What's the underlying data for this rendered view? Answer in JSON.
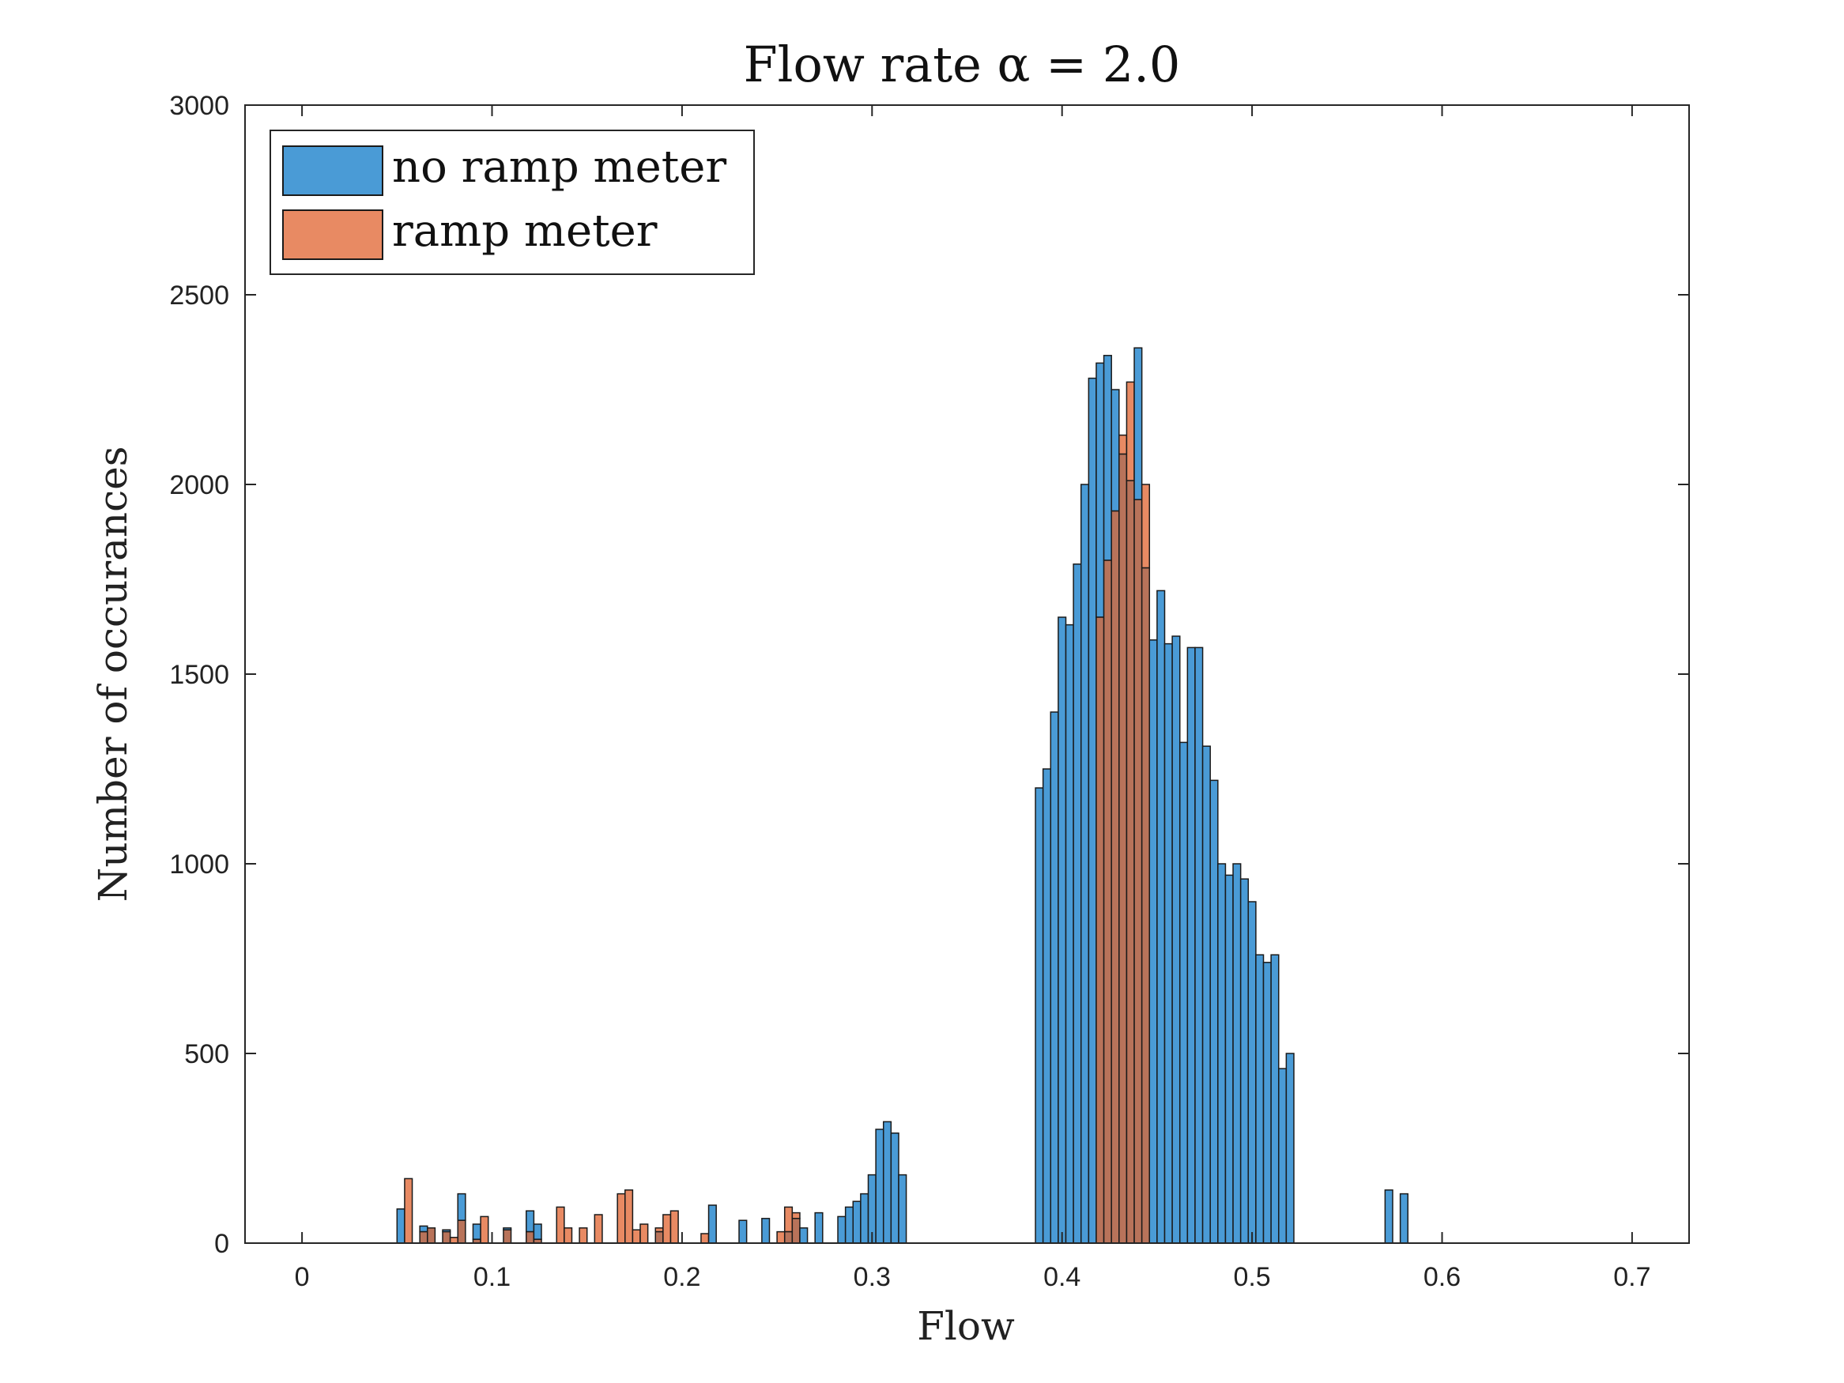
{
  "chart_data": {
    "type": "bar",
    "title": "Flow rate α = 2.0",
    "xlabel": "Flow",
    "ylabel": "Number of occurances",
    "xlim": [
      -0.03,
      0.73
    ],
    "ylim": [
      0,
      3000
    ],
    "xticks": [
      "0",
      "0.1",
      "0.2",
      "0.3",
      "0.4",
      "0.5",
      "0.6",
      "0.7"
    ],
    "yticks": [
      "0",
      "500",
      "1000",
      "1500",
      "2000",
      "2500",
      "3000"
    ],
    "grid": false,
    "legend_position": "top-left",
    "bin_width": 0.004,
    "bin_start": 0.05,
    "series": [
      {
        "name": "no ramp meter",
        "color": "#4A9BD6",
        "values": [
          90,
          0,
          0,
          45,
          40,
          0,
          35,
          0,
          130,
          0,
          50,
          0,
          0,
          0,
          40,
          0,
          0,
          85,
          50,
          0,
          0,
          0,
          0,
          0,
          0,
          0,
          0,
          0,
          0,
          0,
          0,
          0,
          0,
          0,
          30,
          0,
          0,
          0,
          0,
          0,
          0,
          100,
          0,
          0,
          0,
          60,
          0,
          0,
          65,
          0,
          0,
          30,
          65,
          40,
          0,
          80,
          0,
          0,
          70,
          95,
          110,
          130,
          180,
          300,
          320,
          290,
          180,
          0,
          0,
          0,
          0,
          0,
          0,
          0,
          0,
          0,
          0,
          0,
          0,
          0,
          0,
          0,
          0,
          0,
          1200,
          1250,
          1400,
          1650,
          1630,
          1790,
          2000,
          2280,
          2320,
          2340,
          2250,
          2080,
          2010,
          2360,
          1780,
          1590,
          1720,
          1580,
          1600,
          1320,
          1570,
          1570,
          1310,
          1220,
          1000,
          970,
          1000,
          960,
          900,
          760,
          740,
          760,
          460,
          500,
          0,
          0,
          0,
          0,
          0,
          0,
          0,
          0,
          0,
          0,
          0,
          0,
          140,
          0,
          130,
          0,
          0,
          0,
          0,
          0,
          0,
          0,
          0,
          0,
          0,
          0,
          0,
          0,
          0,
          0,
          0,
          0,
          0,
          0,
          0,
          0,
          0,
          0,
          0,
          0,
          0,
          0,
          0,
          0,
          0,
          0,
          0,
          0,
          0,
          0,
          0,
          0,
          0,
          0,
          0,
          0,
          0
        ]
      },
      {
        "name": "ramp meter",
        "color": "#E88A63",
        "values": [
          0,
          170,
          0,
          30,
          40,
          0,
          30,
          15,
          60,
          0,
          10,
          70,
          0,
          0,
          35,
          0,
          0,
          30,
          10,
          0,
          0,
          95,
          40,
          0,
          40,
          0,
          75,
          0,
          0,
          130,
          140,
          35,
          50,
          0,
          40,
          75,
          85,
          0,
          0,
          0,
          25,
          0,
          0,
          0,
          0,
          0,
          0,
          0,
          0,
          0,
          30,
          95,
          80,
          0,
          0,
          0,
          0,
          0,
          0,
          0,
          0,
          0,
          0,
          0,
          0,
          0,
          0,
          0,
          0,
          0,
          0,
          0,
          0,
          0,
          0,
          0,
          0,
          0,
          0,
          0,
          0,
          0,
          0,
          0,
          0,
          0,
          0,
          0,
          0,
          0,
          0,
          0,
          1650,
          1800,
          1930,
          2130,
          2270,
          1960,
          2000,
          0,
          0,
          0,
          0,
          0,
          0,
          0,
          0,
          0,
          0,
          0,
          0,
          0,
          0,
          0,
          0,
          0,
          0,
          0,
          0,
          0,
          0,
          0,
          0,
          0,
          0,
          0,
          0,
          0,
          0,
          0,
          0,
          0,
          0,
          0,
          0,
          0,
          0,
          0,
          0,
          0,
          0,
          0,
          0,
          0,
          0,
          0,
          0,
          0,
          0,
          0,
          0,
          0,
          0,
          0,
          0,
          0,
          0,
          0,
          0,
          0,
          0,
          0,
          0,
          0,
          0,
          0,
          0,
          0,
          0,
          0,
          0,
          0,
          0
        ]
      }
    ]
  }
}
